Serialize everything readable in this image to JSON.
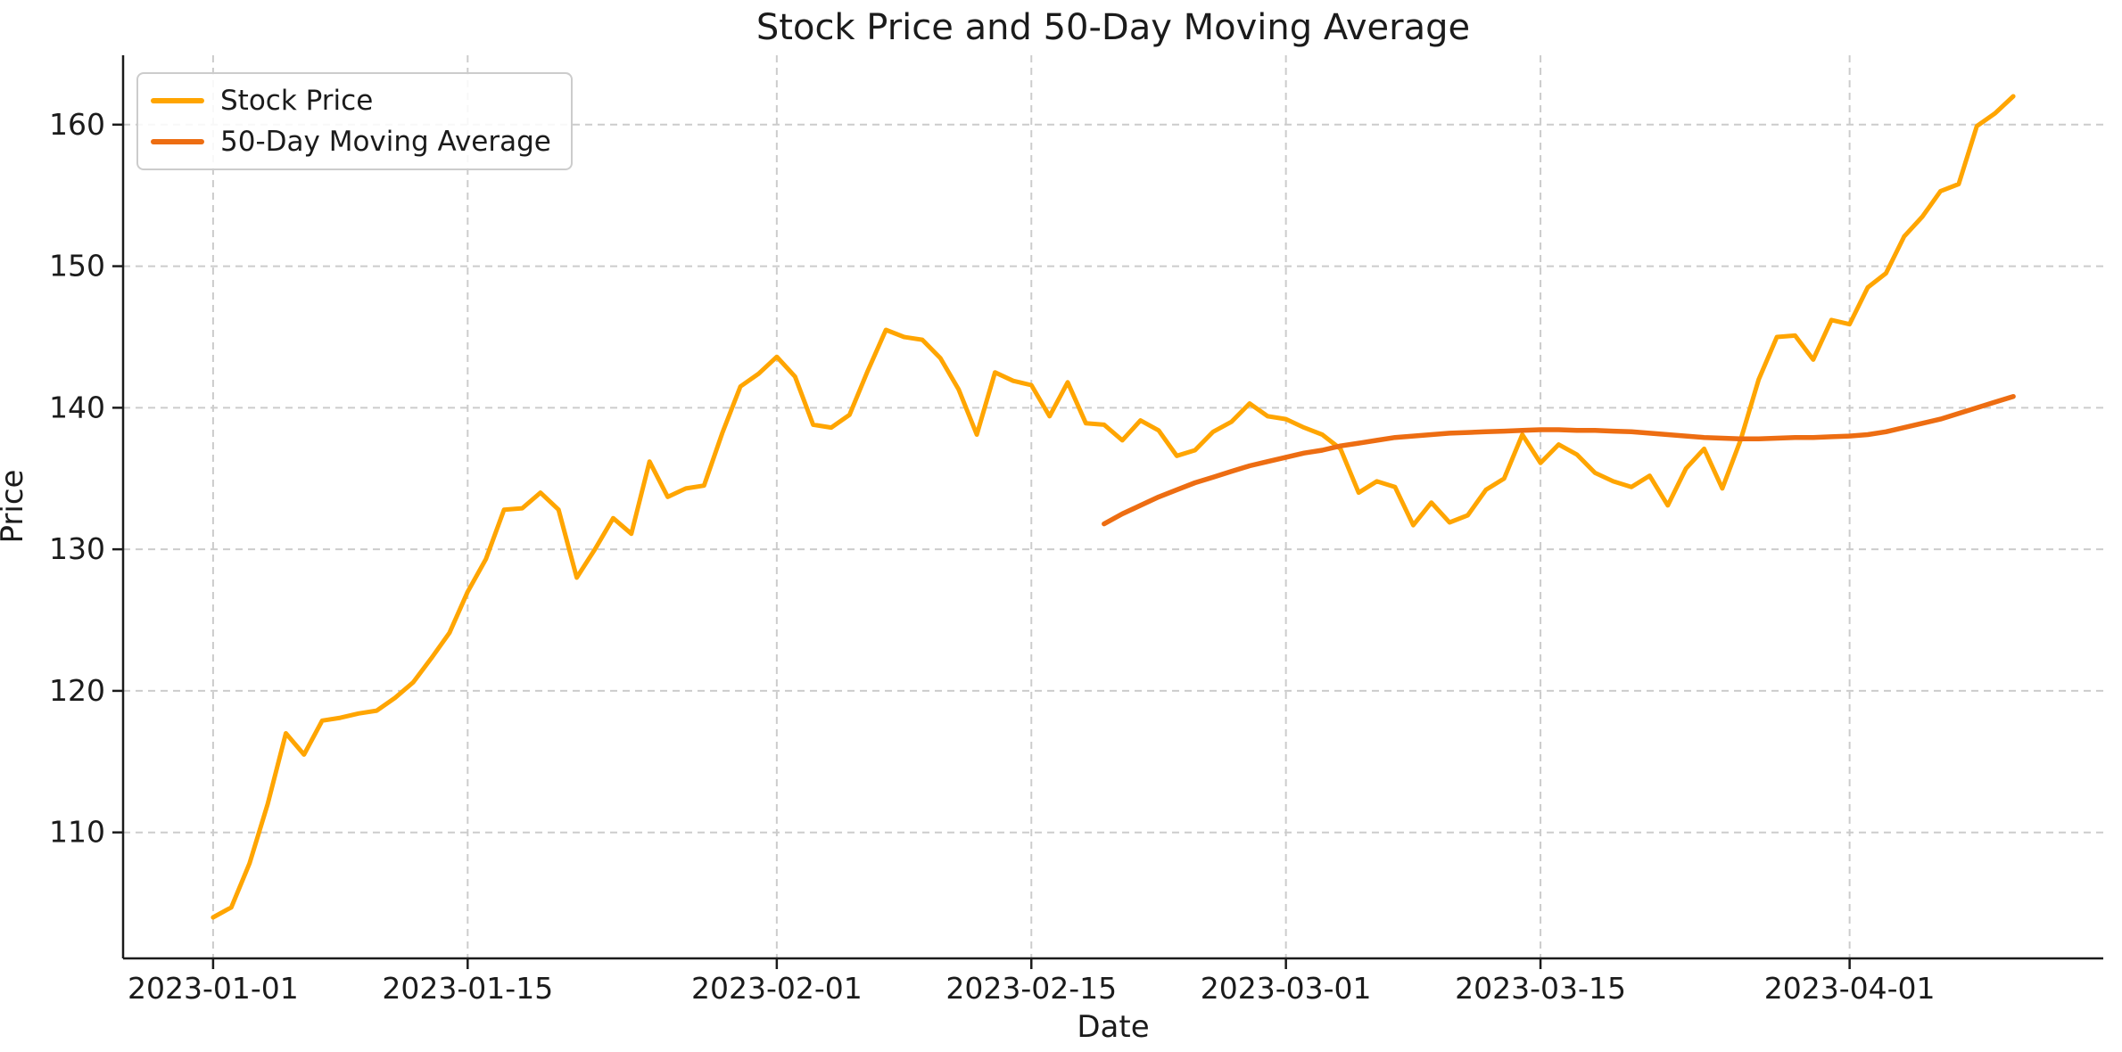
{
  "colors": {
    "background": "#ffffff",
    "text": "#1b1b1b",
    "grid": "#cccccc",
    "spine": "#1b1b1b",
    "stock_line": "#FFA500",
    "ma_line": "#ED6D12"
  },
  "chart_data": {
    "type": "line",
    "title": "Stock Price and 50-Day Moving Average",
    "xlabel": "Date",
    "ylabel": "Price",
    "x_unit": "days since 2023-01-01",
    "x_tick_labels": [
      "2023-01-01",
      "2023-01-15",
      "2023-02-01",
      "2023-02-15",
      "2023-03-01",
      "2023-03-15",
      "2023-04-01"
    ],
    "x_tick_days": [
      0,
      14,
      31,
      45,
      59,
      73,
      90
    ],
    "y_ticks": [
      110,
      120,
      130,
      140,
      150,
      160
    ],
    "xlim_days": [
      -4.95,
      103.95
    ],
    "ylim": [
      101.1,
      164.9
    ],
    "grid": true,
    "grid_style": "dashed",
    "legend_position": "upper left",
    "series": [
      {
        "name": "Stock Price",
        "color": "#FFA500",
        "linewidth": 5,
        "start_day": 0,
        "values": [
          104.0,
          104.7,
          107.8,
          112.0,
          117.0,
          115.5,
          117.9,
          118.1,
          118.4,
          118.6,
          119.5,
          120.6,
          122.3,
          124.1,
          127.0,
          129.3,
          132.8,
          132.9,
          134.0,
          132.8,
          128.0,
          130.0,
          132.2,
          131.1,
          136.2,
          133.7,
          134.3,
          134.5,
          138.2,
          141.5,
          142.4,
          143.6,
          142.2,
          138.8,
          138.6,
          139.5,
          142.6,
          145.5,
          145.0,
          144.8,
          143.5,
          141.3,
          138.1,
          142.5,
          141.9,
          141.6,
          139.4,
          141.8,
          138.9,
          138.8,
          137.7,
          139.1,
          138.4,
          136.6,
          137.0,
          138.3,
          139.0,
          140.3,
          139.4,
          139.2,
          138.6,
          138.1,
          137.1,
          134.0,
          134.8,
          134.4,
          131.7,
          133.3,
          131.9,
          132.4,
          134.2,
          135.0,
          138.1,
          136.1,
          137.4,
          136.7,
          135.4,
          134.8,
          134.4,
          135.2,
          133.1,
          135.7,
          137.1,
          134.3,
          137.7,
          142.0,
          145.0,
          145.1,
          143.4,
          146.2,
          145.9,
          148.5,
          149.5,
          152.1,
          153.5,
          155.3,
          155.8,
          159.9,
          160.8,
          162.0
        ]
      },
      {
        "name": "50-Day Moving Average",
        "color": "#ED6D12",
        "linewidth": 5.5,
        "start_day": 49,
        "values": [
          131.8,
          132.5,
          133.1,
          133.7,
          134.2,
          134.7,
          135.1,
          135.5,
          135.9,
          136.2,
          136.5,
          136.8,
          137.0,
          137.3,
          137.5,
          137.7,
          137.9,
          138.0,
          138.1,
          138.2,
          138.25,
          138.3,
          138.35,
          138.4,
          138.45,
          138.45,
          138.4,
          138.4,
          138.35,
          138.3,
          138.2,
          138.1,
          138.0,
          137.9,
          137.85,
          137.8,
          137.8,
          137.85,
          137.9,
          137.9,
          137.95,
          138.0,
          138.1,
          138.3,
          138.6,
          138.9,
          139.2,
          139.6,
          140.0,
          140.4,
          140.8
        ]
      }
    ]
  }
}
